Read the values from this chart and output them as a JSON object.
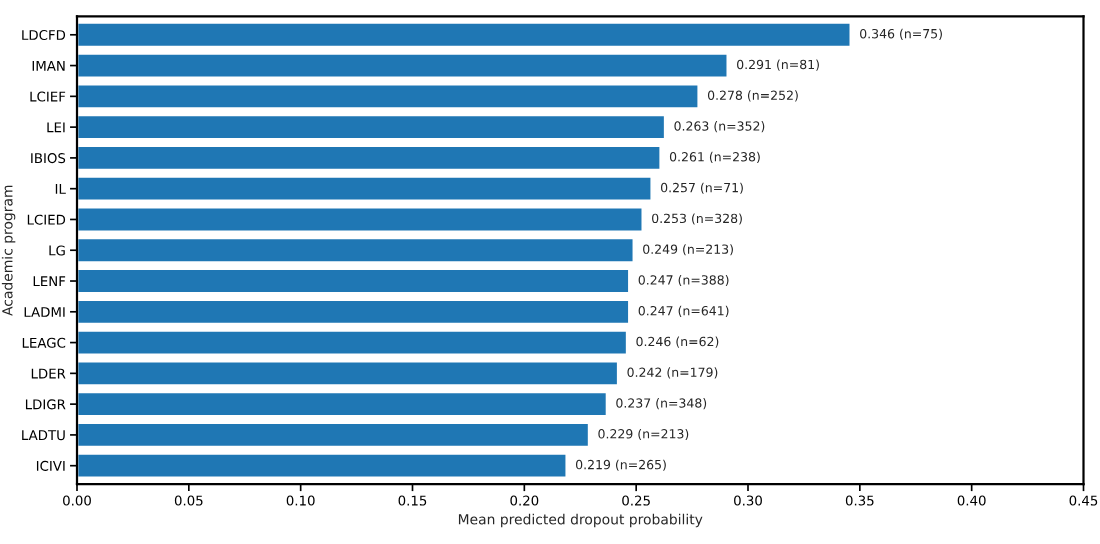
{
  "chart_data": {
    "type": "bar",
    "orientation": "horizontal",
    "xlabel": "Mean predicted dropout probability",
    "ylabel": "Academic program",
    "categories": [
      "LDCFD",
      "IMAN",
      "LCIEF",
      "LEI",
      "IBIOS",
      "IL",
      "LCIED",
      "LG",
      "LENF",
      "LADMI",
      "LEAGC",
      "LDER",
      "LDIGR",
      "LADTU",
      "ICIVI"
    ],
    "values": [
      0.346,
      0.291,
      0.278,
      0.263,
      0.261,
      0.257,
      0.253,
      0.249,
      0.247,
      0.247,
      0.246,
      0.242,
      0.237,
      0.229,
      0.219
    ],
    "value_labels": [
      "0.346 (n=75)",
      "0.291 (n=81)",
      "0.278 (n=252)",
      "0.263 (n=352)",
      "0.261 (n=238)",
      "0.257 (n=71)",
      "0.253 (n=328)",
      "0.249 (n=213)",
      "0.247 (n=388)",
      "0.247 (n=641)",
      "0.246 (n=62)",
      "0.242 (n=179)",
      "0.237 (n=348)",
      "0.229 (n=213)",
      "0.219 (n=265)"
    ],
    "color": "#1f77b4",
    "xlim": [
      0,
      0.45
    ],
    "xticks": [
      {
        "value": 0,
        "label": "0.00"
      },
      {
        "value": 0.05,
        "label": "0.05"
      },
      {
        "value": 0.1,
        "label": "0.10"
      },
      {
        "value": 0.15,
        "label": "0.15"
      },
      {
        "value": 0.2,
        "label": "0.20"
      },
      {
        "value": 0.25,
        "label": "0.25"
      },
      {
        "value": 0.3,
        "label": "0.30"
      },
      {
        "value": 0.35,
        "label": "0.35"
      },
      {
        "value": 0.4,
        "label": "0.40"
      },
      {
        "value": 0.45,
        "label": "0.45"
      }
    ],
    "grid": false,
    "legend": false
  }
}
